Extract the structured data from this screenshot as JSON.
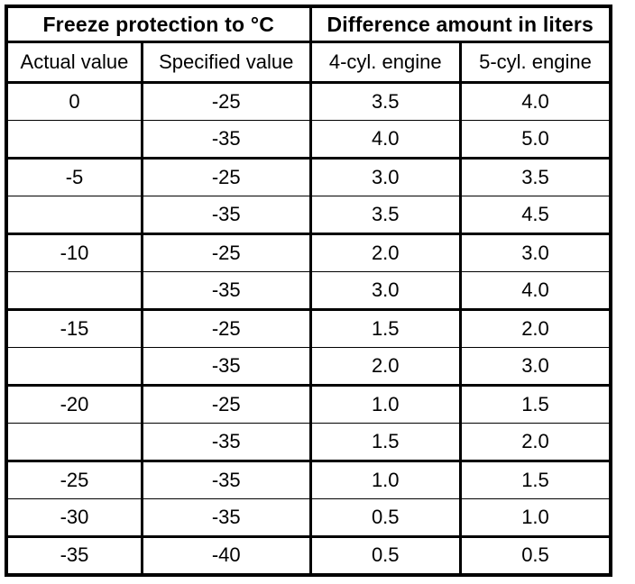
{
  "page": {
    "background_color": "#ffffff",
    "border_color": "#000000",
    "text_color": "#000000"
  },
  "table": {
    "header_groups": [
      {
        "label": "Freeze protection to °C",
        "colspan": 2
      },
      {
        "label": "Difference amount in liters",
        "colspan": 2
      }
    ],
    "column_headers": [
      "Actual value",
      "Specified value",
      "4-cyl. engine",
      "5-cyl. engine"
    ],
    "rows": [
      {
        "cells": [
          "0",
          "-25",
          "3.5",
          "4.0"
        ],
        "top_border": "thick"
      },
      {
        "cells": [
          "",
          "-35",
          "4.0",
          "5.0"
        ],
        "top_border": "thin"
      },
      {
        "cells": [
          "-5",
          "-25",
          "3.0",
          "3.5"
        ],
        "top_border": "thick"
      },
      {
        "cells": [
          "",
          "-35",
          "3.5",
          "4.5"
        ],
        "top_border": "thin"
      },
      {
        "cells": [
          "-10",
          "-25",
          "2.0",
          "3.0"
        ],
        "top_border": "thick"
      },
      {
        "cells": [
          "",
          "-35",
          "3.0",
          "4.0"
        ],
        "top_border": "thin"
      },
      {
        "cells": [
          "-15",
          "-25",
          "1.5",
          "2.0"
        ],
        "top_border": "thick"
      },
      {
        "cells": [
          "",
          "-35",
          "2.0",
          "3.0"
        ],
        "top_border": "thin"
      },
      {
        "cells": [
          "-20",
          "-25",
          "1.0",
          "1.5"
        ],
        "top_border": "thick"
      },
      {
        "cells": [
          "",
          "-35",
          "1.5",
          "2.0"
        ],
        "top_border": "thin"
      },
      {
        "cells": [
          "-25",
          "-35",
          "1.0",
          "1.5"
        ],
        "top_border": "thick"
      },
      {
        "cells": [
          "-30",
          "-35",
          "0.5",
          "1.0"
        ],
        "top_border": "thin"
      },
      {
        "cells": [
          "-35",
          "-40",
          "0.5",
          "0.5"
        ],
        "top_border": "thick"
      }
    ]
  }
}
